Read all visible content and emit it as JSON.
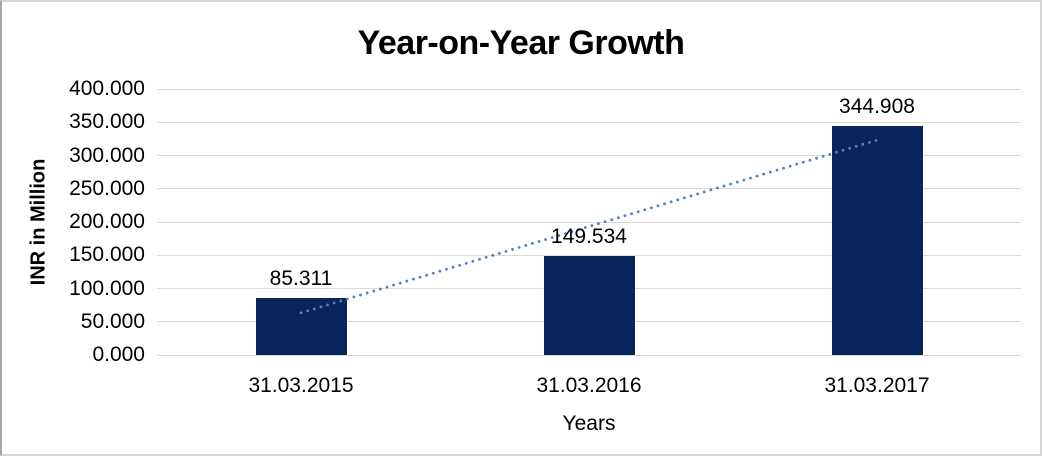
{
  "chart_data": {
    "type": "bar",
    "title": "Year-on-Year Growth",
    "xlabel": "Years",
    "ylabel": "INR in Million",
    "categories": [
      "31.03.2015",
      "31.03.2016",
      "31.03.2017"
    ],
    "values": [
      85.311,
      149.534,
      344.908
    ],
    "data_labels": [
      "85.311",
      "149.534",
      "344.908"
    ],
    "ylim": [
      0,
      400
    ],
    "ytick_step": 50,
    "ytick_labels": [
      "400.000",
      "350.000",
      "300.000",
      "250.000",
      "200.000",
      "150.000",
      "100.000",
      "50.000",
      "0.000"
    ],
    "grid": true,
    "legend": false,
    "bar_color": "#0a2559",
    "gridline_color": "#d9d9d9",
    "text_color": "#000000",
    "trendline": {
      "type": "linear",
      "style": "dotted",
      "color": "#5082be",
      "values_at_categories": [
        63.4,
        193.3,
        323.1
      ]
    }
  }
}
